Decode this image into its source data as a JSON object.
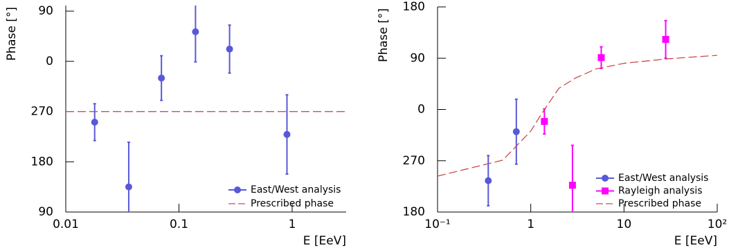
{
  "chart_data": [
    {
      "type": "scatter",
      "y_label": "Phase [°]",
      "x_label": "E [EeV]",
      "log_x": true,
      "legend": "lower right",
      "xlim": [
        0.01,
        3
      ],
      "xticks": [
        0.01,
        0.1,
        1
      ],
      "ylim": [
        90,
        460
      ],
      "yticks": [
        90,
        180,
        270,
        {
          "value": 360,
          "label": "0"
        },
        {
          "value": 450,
          "label": "90"
        }
      ],
      "series": [
        {
          "name": "East/West analysis",
          "color": "#5858d8",
          "marker": "circle",
          "x": [
            0.018,
            0.036,
            0.07,
            0.14,
            0.28,
            0.9
          ],
          "values": [
            251,
            135,
            330,
            413,
            382,
            229
          ],
          "errors": [
            33,
            80,
            40,
            54,
            43,
            71
          ]
        },
        {
          "name": "Prescribed phase",
          "color": "#cc4a4a",
          "marker": "dashed-line",
          "x": [
            0.01,
            3
          ],
          "values": [
            270,
            270
          ]
        }
      ]
    },
    {
      "type": "scatter",
      "y_label": "Phase [°]",
      "x_label": "E [EeV]",
      "log_x": true,
      "legend": "lower right",
      "xlim": [
        0.1,
        100
      ],
      "xticks": [
        {
          "value": 0.1,
          "label": "10⁻¹"
        },
        1,
        10,
        {
          "value": 100,
          "label": "10²"
        }
      ],
      "ylim": [
        180,
        540
      ],
      "yticks": [
        180,
        270,
        {
          "value": 360,
          "label": "0"
        },
        {
          "value": 450,
          "label": "90"
        },
        {
          "value": 540,
          "label": "180"
        }
      ],
      "series": [
        {
          "name": "East/West analysis",
          "color": "#5858d8",
          "marker": "circle",
          "x": [
            0.35,
            0.7
          ],
          "values": [
            235,
            321
          ],
          "errors": [
            44,
            57
          ]
        },
        {
          "name": "Rayleigh analysis",
          "color": "#ff00ff",
          "marker": "square",
          "x": [
            1.4,
            2.8,
            5.7,
            28
          ],
          "values": [
            339,
            227,
            451,
            483
          ],
          "errors": [
            22,
            70,
            19,
            33
          ]
        },
        {
          "name": "Prescribed phase",
          "color": "#cc4a4a",
          "marker": "dashed-line",
          "x": [
            0.1,
            0.5,
            1,
            1.3,
            2,
            3,
            5,
            10,
            30,
            100
          ],
          "values": [
            243,
            271,
            322,
            352,
            397,
            415,
            431,
            441,
            449,
            455
          ]
        }
      ]
    }
  ]
}
